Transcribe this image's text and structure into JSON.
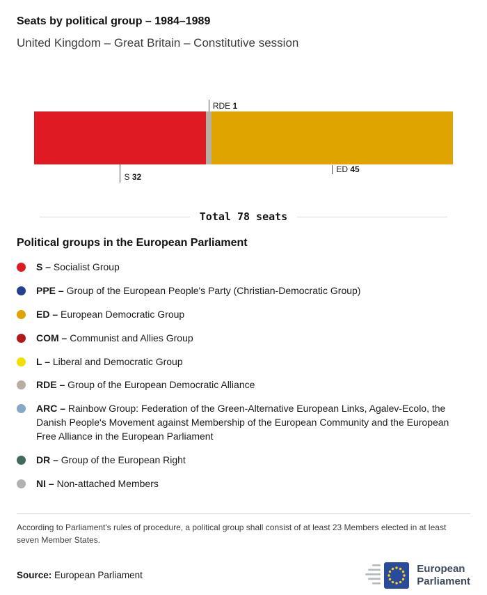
{
  "header": {
    "title": "Seats by political group – 1984–1989",
    "subtitle": "United Kingdom – Great Britain – Constitutive session"
  },
  "chart_data": {
    "type": "bar",
    "subtype": "stacked-horizontal",
    "title": "Seats by political group – 1984–1989",
    "subtitle": "United Kingdom – Great Britain – Constitutive session",
    "total_seats": 78,
    "total_label": "Total 78 seats",
    "xlim": [
      0,
      78
    ],
    "grid": false,
    "legend_position": "below",
    "segments": [
      {
        "code": "S",
        "seats": 32,
        "color": "#e01a22",
        "label": "S 32",
        "label_position": "below"
      },
      {
        "code": "RDE",
        "seats": 1,
        "color": "#b7aea4",
        "label": "RDE 1",
        "label_position": "above"
      },
      {
        "code": "ED",
        "seats": 45,
        "color": "#e0a400",
        "label": "ED 45",
        "label_position": "below"
      }
    ]
  },
  "legend": {
    "heading": "Political groups in the European Parliament",
    "items": [
      {
        "code": "S –",
        "name": "Socialist Group",
        "color": "#e01a22"
      },
      {
        "code": "PPE –",
        "name": "Group of the European People's Party (Christian-Democratic Group)",
        "color": "#23408f"
      },
      {
        "code": "ED –",
        "name": "European Democratic Group",
        "color": "#e0a400"
      },
      {
        "code": "COM –",
        "name": "Communist and Allies Group",
        "color": "#b31918"
      },
      {
        "code": "L –",
        "name": "Liberal and Democratic Group",
        "color": "#f2e000"
      },
      {
        "code": "RDE –",
        "name": "Group of the European Democratic Alliance",
        "color": "#b7aea4"
      },
      {
        "code": "ARC –",
        "name": "Rainbow Group: Federation of the Green-Alternative European Links, Agalev-Ecolo, the Danish People's Movement against Membership of the European Community and the European Free Alliance in the European Parliament",
        "color": "#85a8c8"
      },
      {
        "code": "DR –",
        "name": "Group of the European Right",
        "color": "#43695a"
      },
      {
        "code": "NI –",
        "name": "Non-attached Members",
        "color": "#b2b2b2"
      }
    ]
  },
  "footnote": "According to Parliament's rules of procedure, a political group shall consist of at least 23 Members elected in at least seven Member States.",
  "source": {
    "label": "Source:",
    "value": "European Parliament"
  },
  "logo": {
    "line1": "European",
    "line2": "Parliament",
    "flag_color": "#2a4b9c",
    "star_color": "#f7d117"
  }
}
